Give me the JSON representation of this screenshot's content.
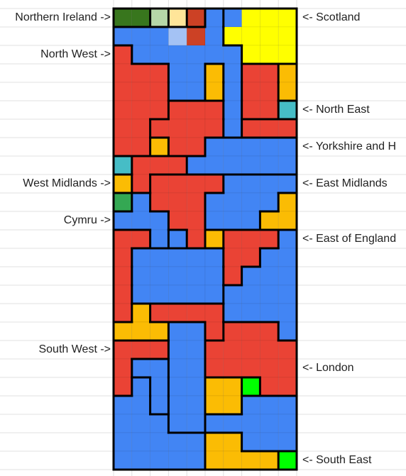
{
  "labels_left": [
    {
      "text": "Northern Ireland ->",
      "row": 0
    },
    {
      "text": "North West ->",
      "row": 2
    },
    {
      "text": "West Midlands ->",
      "row": 9
    },
    {
      "text": "Cymru ->",
      "row": 11
    },
    {
      "text": "South West ->",
      "row": 18
    }
  ],
  "labels_right": [
    {
      "text": "<- Scotland",
      "row": 0
    },
    {
      "text": "<- North East",
      "row": 5
    },
    {
      "text": "<- Yorkshire and H",
      "row": 7
    },
    {
      "text": "<- East Midlands",
      "row": 9
    },
    {
      "text": "<- East of England",
      "row": 12
    },
    {
      "text": "<- London",
      "row": 19
    },
    {
      "text": "<- South East",
      "row": 24
    }
  ],
  "colors": {
    "B": "#4285f4",
    "R": "#ea4335",
    "O": "#fbbc04",
    "Y": "#ffff00",
    "DG": "#38761d",
    "LG": "#b6d7a8",
    "PC": "#ffe599",
    "LB": "#a4c2f4",
    "DR": "#cc4125",
    "T": "#46bdc6",
    "G": "#34a853",
    "BG": "#00ff00",
    "gridline": "#e2e2e2",
    "border": "#000000"
  },
  "grid": [
    [
      "DG",
      "DG",
      "LG",
      "PC",
      "DR",
      "B",
      "B",
      "Y",
      "Y",
      "Y"
    ],
    [
      "B",
      "B",
      "B",
      "LB",
      "DR",
      "B",
      "Y",
      "Y",
      "Y",
      "Y"
    ],
    [
      "R",
      "B",
      "B",
      "B",
      "B",
      "B",
      "B",
      "Y",
      "Y",
      "Y"
    ],
    [
      "R",
      "R",
      "R",
      "B",
      "B",
      "O",
      "B",
      "R",
      "R",
      "O"
    ],
    [
      "R",
      "R",
      "R",
      "B",
      "B",
      "O",
      "B",
      "R",
      "R",
      "O"
    ],
    [
      "R",
      "R",
      "R",
      "R",
      "R",
      "R",
      "B",
      "R",
      "R",
      "T"
    ],
    [
      "R",
      "R",
      "R",
      "R",
      "R",
      "R",
      "B",
      "R",
      "R",
      "R"
    ],
    [
      "R",
      "R",
      "O",
      "R",
      "R",
      "B",
      "B",
      "B",
      "B",
      "B"
    ],
    [
      "T",
      "R",
      "R",
      "R",
      "B",
      "B",
      "B",
      "B",
      "B",
      "B"
    ],
    [
      "O",
      "R",
      "R",
      "R",
      "R",
      "R",
      "B",
      "B",
      "B",
      "B"
    ],
    [
      "G",
      "B",
      "R",
      "R",
      "R",
      "B",
      "B",
      "B",
      "B",
      "O"
    ],
    [
      "B",
      "B",
      "B",
      "R",
      "R",
      "B",
      "B",
      "B",
      "O",
      "O"
    ],
    [
      "R",
      "R",
      "B",
      "B",
      "R",
      "O",
      "R",
      "R",
      "R",
      "B"
    ],
    [
      "R",
      "B",
      "B",
      "B",
      "B",
      "B",
      "R",
      "R",
      "B",
      "B"
    ],
    [
      "R",
      "B",
      "B",
      "B",
      "B",
      "B",
      "R",
      "B",
      "B",
      "B"
    ],
    [
      "R",
      "B",
      "B",
      "B",
      "B",
      "B",
      "B",
      "B",
      "B",
      "B"
    ],
    [
      "R",
      "O",
      "R",
      "R",
      "R",
      "R",
      "B",
      "B",
      "B",
      "B"
    ],
    [
      "O",
      "O",
      "O",
      "B",
      "B",
      "R",
      "R",
      "R",
      "R",
      "B"
    ],
    [
      "R",
      "R",
      "R",
      "B",
      "B",
      "R",
      "R",
      "R",
      "R",
      "R"
    ],
    [
      "R",
      "B",
      "B",
      "B",
      "B",
      "R",
      "R",
      "R",
      "R",
      "R"
    ],
    [
      "R",
      "B",
      "B",
      "B",
      "B",
      "O",
      "O",
      "BG",
      "R",
      "R"
    ],
    [
      "B",
      "B",
      "B",
      "B",
      "B",
      "O",
      "O",
      "B",
      "B",
      "B"
    ],
    [
      "B",
      "B",
      "B",
      "B",
      "B",
      "B",
      "B",
      "B",
      "B",
      "B"
    ],
    [
      "B",
      "B",
      "B",
      "B",
      "B",
      "O",
      "O",
      "B",
      "B",
      "B"
    ],
    [
      "B",
      "B",
      "B",
      "B",
      "B",
      "O",
      "O",
      "O",
      "O",
      "BG"
    ]
  ],
  "regions": [
    [
      0,
      0,
      1,
      2,
      3,
      4,
      5,
      5,
      5,
      5
    ],
    [
      4,
      4,
      4,
      4,
      4,
      4,
      5,
      5,
      5,
      5
    ],
    [
      6,
      4,
      4,
      4,
      4,
      4,
      4,
      5,
      5,
      5
    ],
    [
      6,
      6,
      6,
      4,
      4,
      7,
      4,
      8,
      8,
      9
    ],
    [
      6,
      6,
      6,
      4,
      4,
      7,
      4,
      8,
      8,
      9
    ],
    [
      6,
      6,
      6,
      10,
      10,
      10,
      4,
      8,
      8,
      11
    ],
    [
      6,
      6,
      10,
      10,
      10,
      10,
      4,
      10,
      10,
      10
    ],
    [
      6,
      6,
      12,
      10,
      10,
      13,
      13,
      13,
      13,
      13
    ],
    [
      14,
      15,
      15,
      15,
      13,
      13,
      13,
      13,
      13,
      13
    ],
    [
      16,
      15,
      17,
      17,
      17,
      17,
      18,
      18,
      18,
      18
    ],
    [
      19,
      20,
      17,
      17,
      17,
      18,
      18,
      18,
      18,
      21
    ],
    [
      20,
      20,
      20,
      17,
      17,
      18,
      18,
      18,
      21,
      21
    ],
    [
      22,
      22,
      20,
      23,
      17,
      24,
      25,
      25,
      25,
      26
    ],
    [
      22,
      27,
      27,
      27,
      27,
      27,
      25,
      25,
      26,
      26
    ],
    [
      22,
      27,
      27,
      27,
      27,
      27,
      25,
      26,
      26,
      26
    ],
    [
      22,
      27,
      27,
      27,
      27,
      27,
      26,
      26,
      26,
      26
    ],
    [
      22,
      28,
      29,
      29,
      29,
      29,
      26,
      26,
      26,
      26
    ],
    [
      28,
      28,
      28,
      30,
      30,
      29,
      31,
      31,
      31,
      26
    ],
    [
      32,
      32,
      32,
      30,
      30,
      31,
      31,
      31,
      31,
      31
    ],
    [
      32,
      33,
      33,
      30,
      30,
      31,
      31,
      31,
      31,
      31
    ],
    [
      32,
      34,
      33,
      30,
      30,
      35,
      35,
      36,
      31,
      31
    ],
    [
      34,
      34,
      33,
      30,
      30,
      35,
      35,
      37,
      37,
      37
    ],
    [
      34,
      34,
      34,
      30,
      30,
      37,
      37,
      37,
      37,
      37
    ],
    [
      34,
      34,
      34,
      34,
      34,
      38,
      38,
      37,
      37,
      37
    ],
    [
      34,
      34,
      34,
      34,
      34,
      38,
      38,
      38,
      38,
      39
    ]
  ]
}
